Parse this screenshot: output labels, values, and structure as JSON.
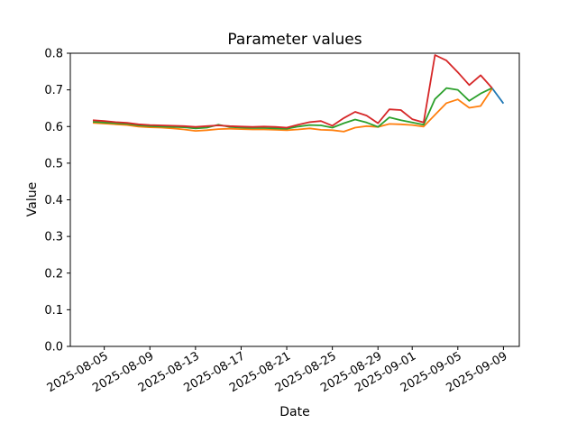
{
  "chart_data": {
    "type": "line",
    "title": "Parameter values",
    "xlabel": "Date",
    "ylabel": "Value",
    "ylim": [
      0.0,
      0.8
    ],
    "y_tick_labels": [
      "0.0",
      "0.1",
      "0.2",
      "0.3",
      "0.4",
      "0.5",
      "0.6",
      "0.7",
      "0.8"
    ],
    "x_tick_labels": [
      "2025-08-05",
      "2025-08-09",
      "2025-08-13",
      "2025-08-17",
      "2025-08-21",
      "2025-08-25",
      "2025-08-29",
      "2025-09-01",
      "2025-09-05",
      "2025-09-09"
    ],
    "x_start_date": "2025-08-04",
    "x_end_date": "2025-09-09",
    "grid": false,
    "legend": "none",
    "series": [
      {
        "name": "series-blue",
        "color": "#1f77b4",
        "start_date": "2025-09-08",
        "values": [
          0.705,
          0.663
        ]
      },
      {
        "name": "series-orange",
        "color": "#ff7f0e",
        "start_date": "2025-08-04",
        "values": [
          0.61,
          0.608,
          0.606,
          0.604,
          0.6,
          0.598,
          0.597,
          0.595,
          0.592,
          0.588,
          0.59,
          0.593,
          0.594,
          0.593,
          0.592,
          0.592,
          0.591,
          0.59,
          0.592,
          0.595,
          0.591,
          0.59,
          0.586,
          0.597,
          0.601,
          0.599,
          0.607,
          0.606,
          0.604,
          0.6,
          0.632,
          0.664,
          0.674,
          0.651,
          0.656,
          0.703
        ]
      },
      {
        "name": "series-green",
        "color": "#2ca02c",
        "start_date": "2025-08-04",
        "values": [
          0.613,
          0.611,
          0.609,
          0.607,
          0.603,
          0.601,
          0.6,
          0.599,
          0.598,
          0.595,
          0.597,
          0.605,
          0.599,
          0.597,
          0.596,
          0.596,
          0.595,
          0.594,
          0.6,
          0.604,
          0.603,
          0.597,
          0.609,
          0.619,
          0.611,
          0.599,
          0.625,
          0.617,
          0.611,
          0.605,
          0.675,
          0.705,
          0.7,
          0.67,
          0.69,
          0.705
        ]
      },
      {
        "name": "series-red",
        "color": "#d62728",
        "start_date": "2025-08-04",
        "values": [
          0.617,
          0.615,
          0.612,
          0.61,
          0.606,
          0.604,
          0.603,
          0.602,
          0.601,
          0.599,
          0.601,
          0.603,
          0.601,
          0.6,
          0.599,
          0.6,
          0.599,
          0.597,
          0.605,
          0.612,
          0.615,
          0.602,
          0.623,
          0.64,
          0.63,
          0.609,
          0.647,
          0.645,
          0.62,
          0.611,
          0.795,
          0.78,
          0.748,
          0.713,
          0.74,
          0.705
        ]
      }
    ]
  }
}
